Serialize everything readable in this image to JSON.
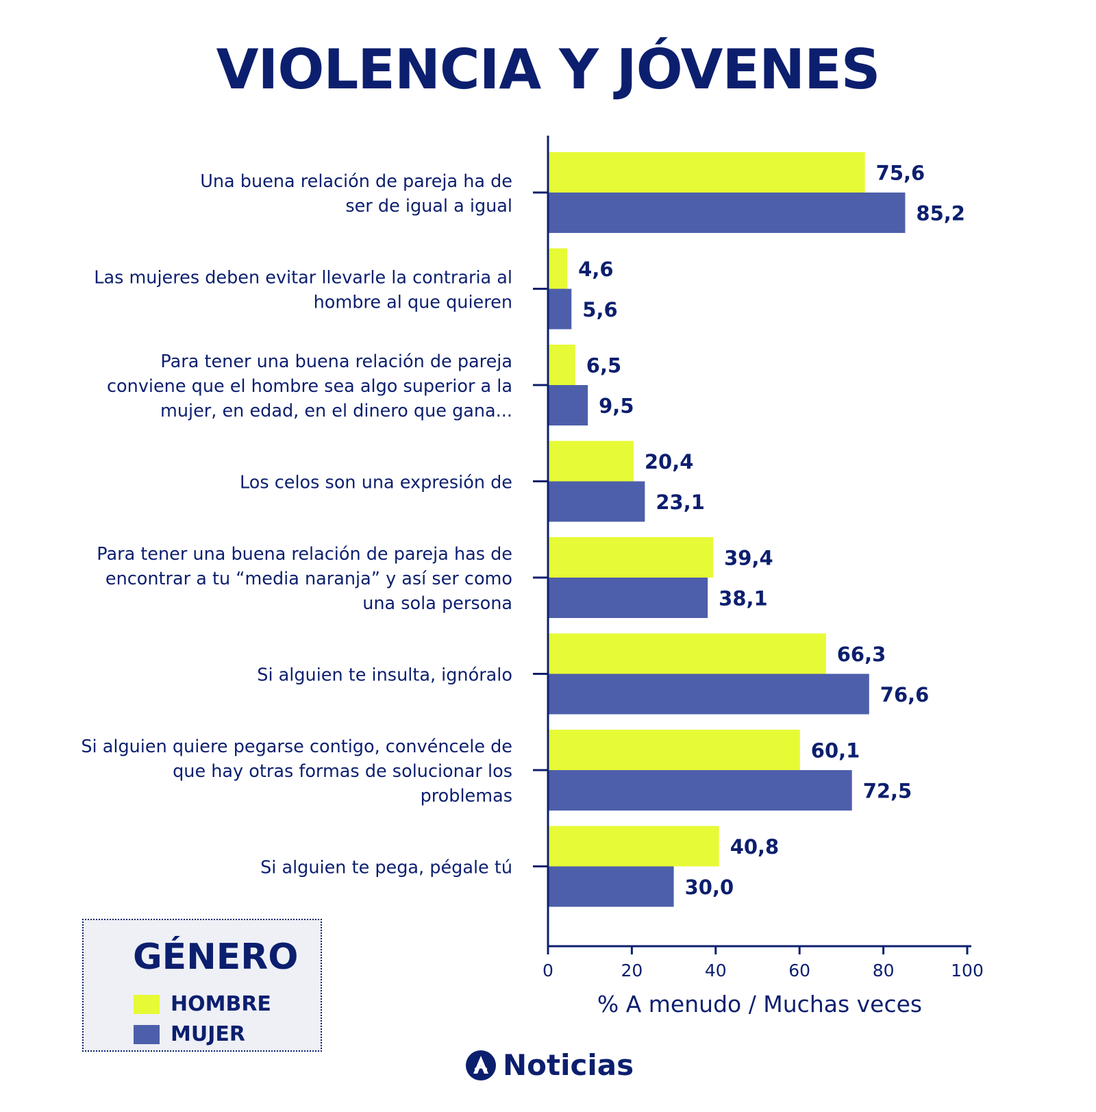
{
  "title": "VIOLENCIA Y JÓVENES",
  "legend": {
    "title": "GÉNERO",
    "items": [
      {
        "label": "HOMBRE",
        "color": "#e6fa36"
      },
      {
        "label": "MUJER",
        "color": "#4d5faa"
      }
    ]
  },
  "brand": {
    "name": "Noticias"
  },
  "chart_data": {
    "type": "bar",
    "orientation": "horizontal",
    "categories": [
      [
        "Una buena relación de pareja ha de",
        "ser de igual a igual"
      ],
      [
        "Las mujeres deben evitar llevarle la contraria al",
        "hombre al que quieren"
      ],
      [
        "Para tener una buena relación de pareja",
        "conviene que el hombre sea algo superior a la",
        "mujer, en edad, en el dinero que gana..."
      ],
      [
        "Los celos son una expresión de"
      ],
      [
        "Para tener una buena relación de pareja has de",
        "encontrar a tu “media naranja” y así ser como",
        "una sola persona"
      ],
      [
        "Si alguien te insulta, ignóralo"
      ],
      [
        "Si alguien quiere pegarse contigo, convéncele de",
        "que hay otras formas de solucionar los",
        "problemas"
      ],
      [
        "Si alguien te pega, pégale tú"
      ]
    ],
    "series": [
      {
        "name": "HOMBRE",
        "color": "#e6fa36",
        "values": [
          75.6,
          4.6,
          6.5,
          20.4,
          39.4,
          66.3,
          60.1,
          40.8
        ],
        "labels": [
          "75,6",
          "4,6",
          "6,5",
          "20,4",
          "39,4",
          "66,3",
          "60,1",
          "40,8"
        ]
      },
      {
        "name": "MUJER",
        "color": "#4d5faa",
        "values": [
          85.2,
          5.6,
          9.5,
          23.1,
          38.1,
          76.6,
          72.5,
          30.0
        ],
        "labels": [
          "85,2",
          "5,6",
          "9,5",
          "23,1",
          "38,1",
          "76,6",
          "72,5",
          "30,0"
        ]
      }
    ],
    "xlabel": "% A menudo / Muchas veces",
    "xlim": [
      0,
      100
    ],
    "xticks": [
      0,
      20,
      40,
      60,
      80,
      100
    ],
    "grid": false,
    "legend_position": "bottom-left"
  }
}
